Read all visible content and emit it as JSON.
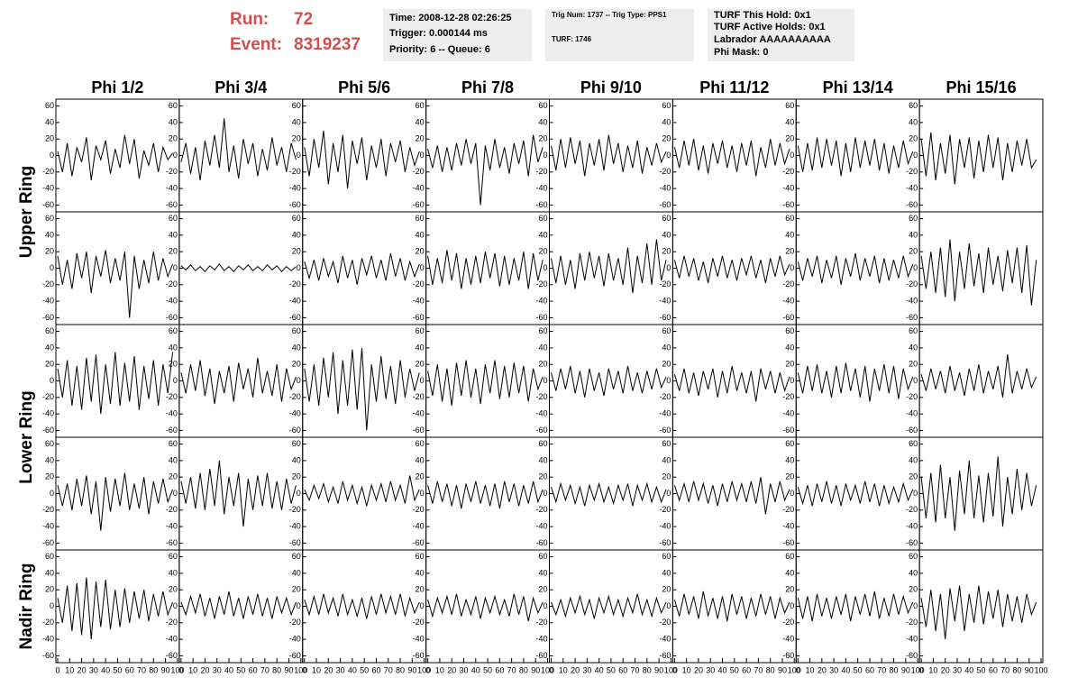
{
  "header": {
    "run_label": "Run:",
    "run": 72,
    "event_label": "Event:",
    "event": 8319237,
    "time": "Time: 2008-12-28 02:26:25",
    "trigger": "Trigger: 0.000144 ms",
    "priority": "Priority: 6 -- Queue: 6",
    "trig_num": "Trig Num: 1737 -- Trig Type: PPS1",
    "turf": "TURF: 1746",
    "turf_hold": "TURF This Hold: 0x1",
    "turf_active": "TURF Active Holds: 0x1",
    "labrador": "Labrador AAAAAAAAAA",
    "phi_mask": "Phi Mask: 0"
  },
  "chart_data": {
    "type": "line",
    "color": "#000000",
    "columns": [
      "Phi 1/2",
      "Phi 3/4",
      "Phi 5/6",
      "Phi 7/8",
      "Phi 9/10",
      "Phi 11/12",
      "Phi 13/14",
      "Phi 15/16"
    ],
    "row_labels": [
      "Upper Ring",
      "Lower Ring",
      "Nadir Ring"
    ],
    "xlim": [
      0,
      100
    ],
    "ylim": [
      -65,
      65
    ],
    "xticks": [
      0,
      10,
      20,
      30,
      40,
      50,
      60,
      70,
      80,
      90,
      100
    ],
    "yticks": [
      60,
      40,
      20,
      0,
      -20,
      -40,
      -60
    ],
    "x": [
      0,
      4,
      8,
      12,
      16,
      20,
      24,
      28,
      32,
      36,
      40,
      44,
      48,
      52,
      56,
      60,
      64,
      68,
      72,
      76,
      80,
      84,
      88,
      92,
      96
    ],
    "panels": [
      [
        [
          5,
          -20,
          15,
          -25,
          10,
          -8,
          22,
          -30,
          12,
          -5,
          18,
          -22,
          8,
          -15,
          25,
          -10,
          20,
          -28,
          6,
          -12,
          15,
          -20,
          10,
          -5,
          3
        ],
        [
          -8,
          15,
          -22,
          10,
          -30,
          18,
          -12,
          25,
          -15,
          45,
          -20,
          12,
          -28,
          20,
          -10,
          15,
          -25,
          8,
          -18,
          22,
          -12,
          10,
          -20,
          15,
          -5
        ],
        [
          10,
          -25,
          20,
          -15,
          30,
          -35,
          15,
          -20,
          25,
          -40,
          18,
          -10,
          22,
          -30,
          12,
          -15,
          20,
          -25,
          15,
          -8,
          18,
          -20,
          10,
          -12,
          5
        ],
        [
          8,
          -15,
          12,
          -20,
          10,
          -18,
          15,
          -12,
          20,
          -10,
          15,
          -60,
          12,
          -18,
          20,
          -15,
          10,
          -22,
          15,
          -10,
          18,
          -25,
          25,
          -8,
          10
        ],
        [
          12,
          -18,
          20,
          -15,
          22,
          -10,
          18,
          -25,
          15,
          -12,
          20,
          -18,
          25,
          -10,
          15,
          -20,
          12,
          -15,
          18,
          -22,
          10,
          -12,
          15,
          -8,
          5
        ],
        [
          10,
          -15,
          18,
          -12,
          20,
          -18,
          12,
          -22,
          15,
          -10,
          18,
          -15,
          12,
          -20,
          15,
          -12,
          18,
          -25,
          10,
          -15,
          20,
          -12,
          15,
          -10,
          8
        ],
        [
          12,
          -20,
          15,
          -18,
          22,
          -15,
          20,
          -12,
          18,
          -25,
          15,
          -20,
          22,
          -15,
          18,
          -12,
          20,
          -18,
          15,
          -22,
          12,
          -15,
          18,
          -10,
          5
        ],
        [
          20,
          -25,
          28,
          -30,
          15,
          -22,
          25,
          -35,
          20,
          -15,
          22,
          -28,
          18,
          -20,
          25,
          -15,
          22,
          -30,
          15,
          -20,
          18,
          -12,
          20,
          -15,
          -5
        ]
      ],
      [
        [
          15,
          -20,
          10,
          -25,
          18,
          -12,
          20,
          -30,
          15,
          -10,
          22,
          -18,
          12,
          -15,
          20,
          -60,
          15,
          -25,
          10,
          -18,
          20,
          -15,
          12,
          -10,
          5
        ],
        [
          3,
          -2,
          4,
          -3,
          2,
          -4,
          3,
          -2,
          5,
          -3,
          2,
          -4,
          3,
          -2,
          4,
          -3,
          2,
          -3,
          4,
          -2,
          3,
          -4,
          2,
          -3,
          2
        ],
        [
          8,
          -12,
          10,
          -15,
          12,
          -10,
          8,
          -18,
          15,
          -12,
          10,
          -20,
          12,
          -8,
          15,
          -12,
          10,
          -15,
          18,
          -10,
          12,
          -15,
          8,
          -10,
          5
        ],
        [
          15,
          -20,
          12,
          -18,
          22,
          -15,
          18,
          -25,
          12,
          -20,
          15,
          -18,
          20,
          -12,
          18,
          -22,
          15,
          -20,
          12,
          -15,
          20,
          -25,
          18,
          -15,
          10
        ],
        [
          12,
          -18,
          15,
          -20,
          10,
          -25,
          18,
          -15,
          20,
          -12,
          15,
          -22,
          18,
          -15,
          12,
          -20,
          25,
          -30,
          15,
          -18,
          30,
          -20,
          35,
          -15,
          10
        ],
        [
          10,
          -12,
          15,
          -10,
          12,
          -15,
          8,
          -18,
          12,
          -10,
          15,
          -12,
          10,
          -15,
          12,
          -8,
          15,
          -12,
          10,
          -18,
          12,
          -10,
          15,
          -8,
          5
        ],
        [
          8,
          -15,
          12,
          -10,
          15,
          -18,
          10,
          -12,
          15,
          -20,
          12,
          -10,
          18,
          -15,
          12,
          -10,
          15,
          -18,
          12,
          -15,
          10,
          -12,
          15,
          -10,
          5
        ],
        [
          15,
          -25,
          20,
          -30,
          25,
          -35,
          35,
          -40,
          20,
          -25,
          30,
          -22,
          18,
          -30,
          25,
          -20,
          15,
          -28,
          22,
          -18,
          25,
          -30,
          28,
          -45,
          10
        ]
      ],
      [
        [
          15,
          -20,
          25,
          -30,
          18,
          -35,
          28,
          -25,
          32,
          -40,
          20,
          -28,
          35,
          -30,
          22,
          -25,
          30,
          -35,
          18,
          -22,
          25,
          -30,
          20,
          -15,
          35
        ],
        [
          10,
          -15,
          20,
          -12,
          25,
          -18,
          15,
          -28,
          12,
          -15,
          18,
          -25,
          22,
          -10,
          15,
          -20,
          28,
          -15,
          12,
          -18,
          20,
          -25,
          15,
          -10,
          5
        ],
        [
          15,
          -25,
          20,
          -30,
          28,
          -20,
          35,
          -40,
          25,
          -30,
          38,
          -35,
          40,
          -60,
          20,
          -25,
          30,
          -22,
          18,
          -28,
          25,
          -20,
          15,
          -12,
          10
        ],
        [
          12,
          -18,
          20,
          -25,
          15,
          -30,
          22,
          -18,
          25,
          -20,
          15,
          -28,
          20,
          -15,
          25,
          -22,
          18,
          -20,
          22,
          -15,
          18,
          -25,
          15,
          -10,
          5
        ],
        [
          10,
          -12,
          15,
          -10,
          18,
          -15,
          12,
          -20,
          15,
          -12,
          10,
          -18,
          15,
          -10,
          12,
          -15,
          18,
          -12,
          10,
          -15,
          12,
          -10,
          15,
          -8,
          5
        ],
        [
          8,
          -12,
          15,
          -15,
          10,
          -18,
          12,
          -10,
          15,
          -20,
          12,
          -15,
          18,
          -12,
          10,
          -15,
          12,
          -25,
          15,
          -10,
          12,
          -15,
          10,
          -12,
          5
        ],
        [
          10,
          -15,
          18,
          -12,
          20,
          -15,
          12,
          -20,
          18,
          -15,
          22,
          -12,
          15,
          -20,
          18,
          -25,
          15,
          -12,
          20,
          -15,
          18,
          -22,
          15,
          -10,
          5
        ],
        [
          8,
          -12,
          15,
          -10,
          12,
          -15,
          18,
          -12,
          10,
          -18,
          15,
          -12,
          20,
          -15,
          12,
          -10,
          18,
          -20,
          32,
          -15,
          12,
          -10,
          15,
          -8,
          5
        ]
      ],
      [
        [
          10,
          -15,
          12,
          -20,
          18,
          -15,
          22,
          -25,
          15,
          -45,
          20,
          -22,
          18,
          -15,
          25,
          -20,
          12,
          -18,
          20,
          -25,
          15,
          -12,
          18,
          -10,
          5
        ],
        [
          15,
          -12,
          20,
          -18,
          25,
          -20,
          30,
          -15,
          40,
          -25,
          20,
          -15,
          25,
          -40,
          18,
          -20,
          22,
          -15,
          25,
          -18,
          15,
          -20,
          18,
          -12,
          10
        ],
        [
          5,
          -8,
          10,
          -6,
          12,
          -10,
          8,
          -12,
          15,
          -8,
          10,
          -12,
          8,
          -15,
          10,
          -8,
          12,
          -10,
          15,
          -8,
          10,
          -12,
          22,
          -8,
          5
        ],
        [
          10,
          -12,
          15,
          -10,
          12,
          -15,
          10,
          -18,
          12,
          -10,
          15,
          -12,
          10,
          -15,
          12,
          -18,
          15,
          -10,
          12,
          -15,
          10,
          -12,
          15,
          -10,
          5
        ],
        [
          8,
          -10,
          12,
          -8,
          10,
          -12,
          8,
          -15,
          10,
          -8,
          12,
          -10,
          8,
          -12,
          10,
          -8,
          12,
          -15,
          10,
          -8,
          12,
          -10,
          8,
          -10,
          5
        ],
        [
          10,
          -8,
          12,
          -10,
          15,
          -8,
          12,
          -12,
          10,
          -15,
          12,
          -10,
          15,
          -8,
          12,
          -10,
          15,
          -12,
          20,
          -25,
          12,
          -10,
          15,
          -8,
          5
        ],
        [
          8,
          -12,
          10,
          -15,
          12,
          -10,
          15,
          -12,
          10,
          -15,
          12,
          -8,
          10,
          -12,
          15,
          -10,
          12,
          -15,
          10,
          -12,
          8,
          -10,
          12,
          -8,
          5
        ],
        [
          20,
          -30,
          25,
          -35,
          35,
          -30,
          20,
          -45,
          28,
          -25,
          40,
          -30,
          22,
          -35,
          25,
          -28,
          45,
          -40,
          20,
          -25,
          30,
          -20,
          25,
          -15,
          10
        ]
      ],
      [
        [
          10,
          -20,
          25,
          -30,
          28,
          -35,
          35,
          -40,
          30,
          -25,
          32,
          -28,
          20,
          -25,
          22,
          -20,
          18,
          -15,
          20,
          -18,
          15,
          -12,
          18,
          -10,
          5
        ],
        [
          5,
          -10,
          12,
          -8,
          15,
          -12,
          10,
          -15,
          12,
          -10,
          18,
          -12,
          10,
          -15,
          12,
          -10,
          15,
          -12,
          10,
          -15,
          12,
          -8,
          10,
          -10,
          5
        ],
        [
          8,
          -10,
          12,
          -10,
          15,
          -8,
          10,
          -12,
          15,
          -10,
          8,
          -12,
          10,
          -15,
          12,
          -10,
          15,
          -8,
          12,
          -10,
          15,
          -12,
          10,
          -8,
          5
        ],
        [
          8,
          -12,
          10,
          -8,
          12,
          -10,
          15,
          -12,
          8,
          -10,
          12,
          -15,
          10,
          -8,
          12,
          -10,
          8,
          -12,
          15,
          -10,
          12,
          -18,
          10,
          -8,
          5
        ],
        [
          5,
          -10,
          8,
          -12,
          10,
          -8,
          12,
          -10,
          8,
          -15,
          10,
          -8,
          12,
          -10,
          8,
          -12,
          10,
          -8,
          15,
          -10,
          8,
          -12,
          10,
          -8,
          5
        ],
        [
          8,
          -12,
          15,
          -10,
          12,
          -15,
          18,
          -12,
          10,
          -15,
          12,
          -18,
          15,
          -10,
          12,
          -15,
          10,
          -12,
          15,
          -10,
          12,
          -15,
          10,
          -8,
          5
        ],
        [
          10,
          -15,
          12,
          -18,
          15,
          -12,
          10,
          -15,
          12,
          -10,
          15,
          -18,
          12,
          -10,
          15,
          -12,
          18,
          -15,
          10,
          -12,
          15,
          -10,
          12,
          -8,
          5
        ],
        [
          10,
          -25,
          20,
          -30,
          15,
          -40,
          22,
          -18,
          25,
          -30,
          15,
          -20,
          25,
          -22,
          18,
          -15,
          20,
          -25,
          15,
          -18,
          12,
          -20,
          15,
          -10,
          5
        ]
      ]
    ]
  }
}
